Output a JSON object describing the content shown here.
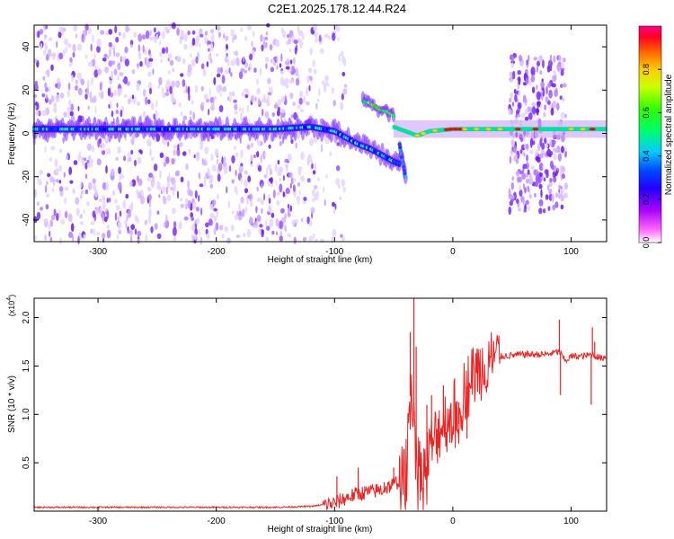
{
  "figure_title": "C2E1.2025.178.12.44.R24",
  "chart_data": [
    {
      "type": "heatmap",
      "xlabel": "Height of straight line (km)",
      "ylabel": "Frequency (Hz)",
      "xlim": [
        -354,
        130
      ],
      "ylim": [
        -50,
        50
      ],
      "x_ticks": [
        -300,
        -200,
        -100,
        0,
        100
      ],
      "x_tick_labels": [
        "-300",
        "-200",
        "-100",
        "0",
        "100"
      ],
      "y_ticks": [
        -40,
        -20,
        0,
        20,
        40
      ],
      "y_tick_labels": [
        "-40",
        "-20",
        "0",
        "20",
        "40"
      ],
      "colorbar": {
        "label": "Normalized spectral amplitude",
        "range": [
          0,
          1
        ],
        "ticks": [
          0.0,
          0.2,
          0.4,
          0.6,
          0.8
        ],
        "tick_labels": [
          "0.0",
          "0.2",
          "0.4",
          "0.6",
          "0.8"
        ],
        "colormap": [
          "#ffffff",
          "#ff00ff",
          "#7700ff",
          "#0000ff",
          "#00ffff",
          "#00ff66",
          "#77ff00",
          "#ffff00",
          "#ff8800",
          "#ff0000",
          "#ff0088"
        ]
      },
      "main_ridge": [
        {
          "x": -354,
          "y": 2
        },
        {
          "x": -300,
          "y": 2
        },
        {
          "x": -200,
          "y": 2
        },
        {
          "x": -150,
          "y": 2
        },
        {
          "x": -120,
          "y": 3
        },
        {
          "x": -100,
          "y": 1
        },
        {
          "x": -90,
          "y": -2
        },
        {
          "x": -80,
          "y": -5
        },
        {
          "x": -70,
          "y": -7
        },
        {
          "x": -60,
          "y": -10
        },
        {
          "x": -50,
          "y": -13
        },
        {
          "x": -45,
          "y": -14
        }
      ],
      "upper_branch": [
        {
          "x": -76,
          "y": 15
        },
        {
          "x": -70,
          "y": 14
        },
        {
          "x": -62,
          "y": 11
        },
        {
          "x": -55,
          "y": 10
        },
        {
          "x": -50,
          "y": 8
        }
      ],
      "drop_branch": [
        {
          "x": -45,
          "y": -5
        },
        {
          "x": -42,
          "y": -14
        },
        {
          "x": -40,
          "y": -20
        }
      ],
      "right_ridge": [
        {
          "x": -50,
          "y": 3
        },
        {
          "x": -40,
          "y": 1
        },
        {
          "x": -30,
          "y": -1
        },
        {
          "x": -20,
          "y": 1
        },
        {
          "x": 0,
          "y": 2
        },
        {
          "x": 50,
          "y": 2
        },
        {
          "x": 100,
          "y": 2
        },
        {
          "x": 130,
          "y": 2
        }
      ]
    },
    {
      "type": "line",
      "xlabel": "Height of straight line (km)",
      "ylabel": "SNR (10 * v/v)",
      "y_multiplier": "(x10",
      "y_multiplier_exp": "4",
      "xlim": [
        -354,
        130
      ],
      "ylim": [
        0,
        2.2
      ],
      "x_ticks": [
        -300,
        -200,
        -100,
        0,
        100
      ],
      "x_tick_labels": [
        "-300",
        "-200",
        "-100",
        "0",
        "100"
      ],
      "y_ticks": [
        0.5,
        1.0,
        1.5,
        2.0
      ],
      "y_tick_labels": [
        "0.5",
        "1.0",
        "1.5",
        "2.0"
      ],
      "color": "#ee2222",
      "series": [
        {
          "x": [
            -354,
            -300,
            -200,
            -150,
            -120,
            -100,
            -90,
            -80,
            -70,
            -60,
            -50,
            -40,
            -35,
            -30,
            -25,
            -20,
            -10,
            0,
            10,
            20,
            30,
            40,
            60,
            80,
            90,
            95,
            100,
            110,
            118,
            125,
            130
          ],
          "y": [
            0.04,
            0.04,
            0.04,
            0.04,
            0.05,
            0.08,
            0.14,
            0.18,
            0.2,
            0.22,
            0.28,
            0.35,
            1.4,
            0.5,
            0.4,
            0.6,
            0.9,
            1.0,
            1.25,
            1.45,
            1.55,
            1.6,
            1.62,
            1.62,
            1.65,
            1.55,
            1.6,
            1.6,
            1.62,
            1.58,
            1.6
          ]
        }
      ],
      "spikes": [
        {
          "x": -98,
          "y": 0.36
        },
        {
          "x": -80,
          "y": 0.45
        },
        {
          "x": -58,
          "y": 0.3
        },
        {
          "x": -50,
          "y": 0.45
        },
        {
          "x": -45,
          "y": 0.55
        },
        {
          "x": -36,
          "y": 1.85
        },
        {
          "x": -33,
          "y": 2.25
        },
        {
          "x": -31,
          "y": 1.7
        },
        {
          "x": -27,
          "y": 0.2
        },
        {
          "x": -22,
          "y": 1.1
        },
        {
          "x": -18,
          "y": 1.2
        },
        {
          "x": -12,
          "y": 0.65
        },
        {
          "x": -8,
          "y": 1.3
        },
        {
          "x": 5,
          "y": 0.9
        },
        {
          "x": 12,
          "y": 0.75
        },
        {
          "x": 90,
          "y": 1.98
        },
        {
          "x": 91,
          "y": 1.2
        },
        {
          "x": 117,
          "y": 1.1
        },
        {
          "x": 118,
          "y": 1.9
        },
        {
          "x": 120,
          "y": 1.75
        }
      ]
    }
  ]
}
